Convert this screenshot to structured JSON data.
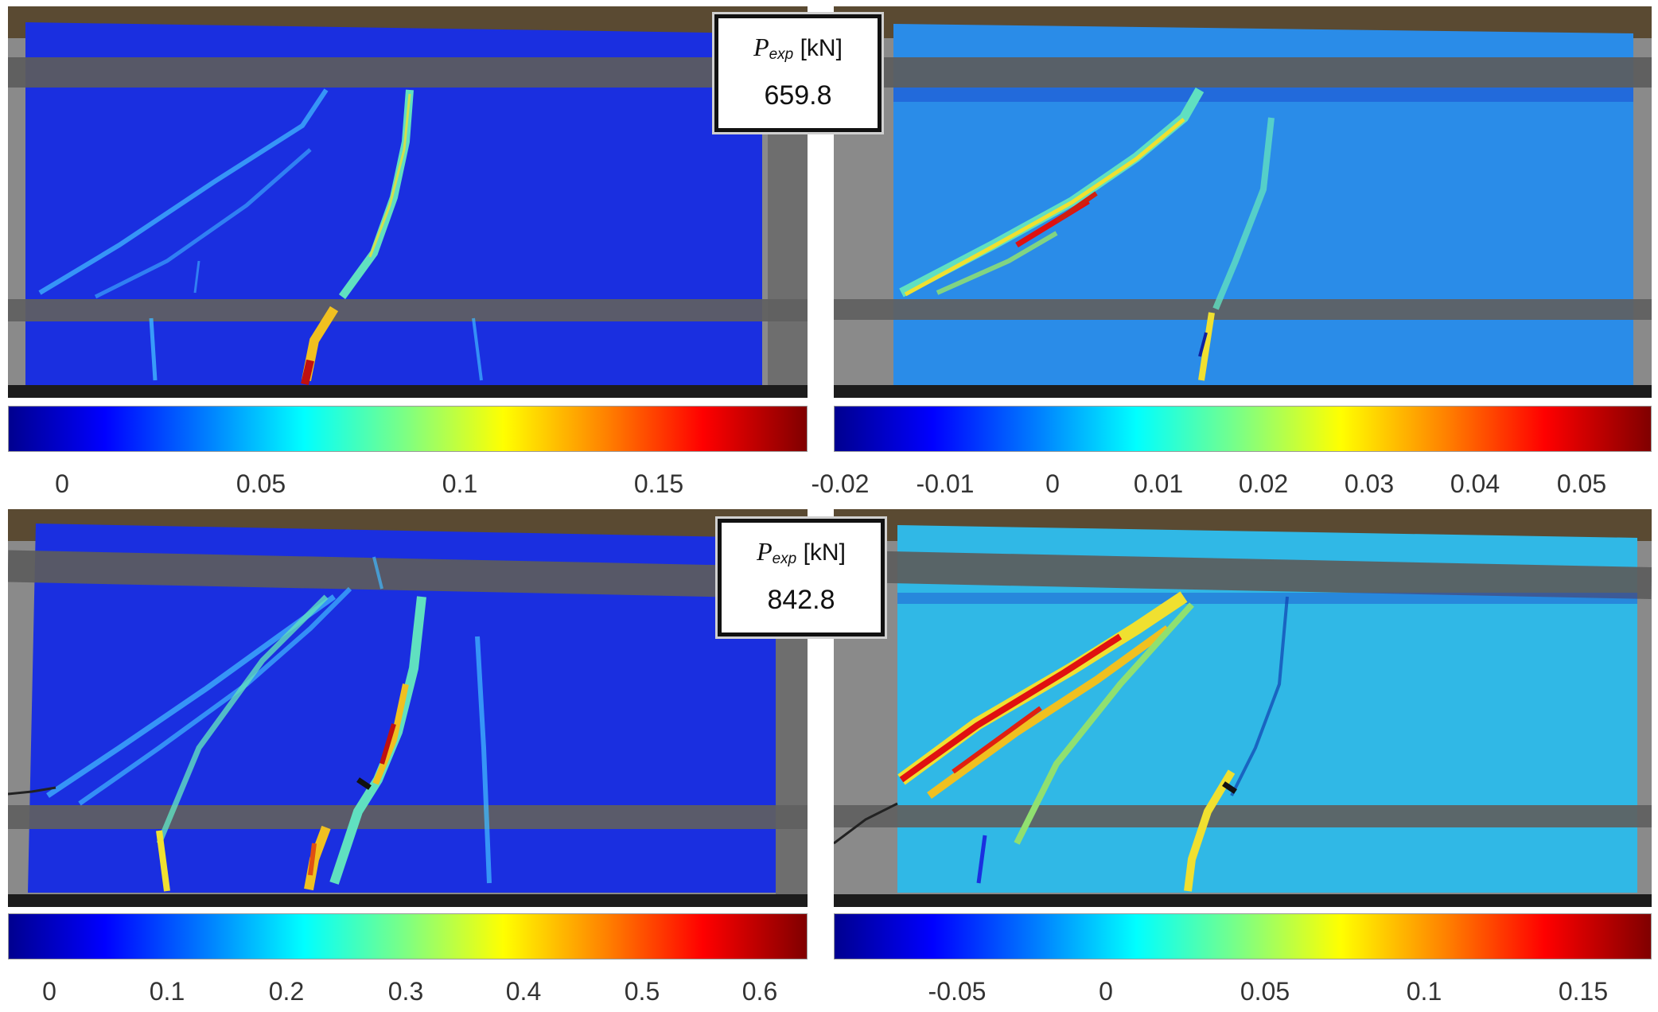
{
  "colors": {
    "field_low_left": "#1a2fe0",
    "field_low_right": "#2a8ce8",
    "field_low_right_bottom": "#30b8e6",
    "frame": "#555555",
    "crack_mid": "#f0e030",
    "crack_high": "#e01010"
  },
  "panels": [
    {
      "name": "top-left-strain-map"
    },
    {
      "name": "top-right-strain-map"
    },
    {
      "name": "bottom-left-strain-map"
    },
    {
      "name": "bottom-right-strain-map"
    }
  ],
  "load_boxes": [
    {
      "symbol": "P",
      "subscript": "exp",
      "unit": "[kN]",
      "value": "659.8"
    },
    {
      "symbol": "P",
      "subscript": "exp",
      "unit": "[kN]",
      "value": "842.8"
    }
  ],
  "colorbars": {
    "top_left": {
      "colormap": "jet",
      "ticks": [
        "0",
        "0.05",
        "0.1",
        "0.15"
      ]
    },
    "top_right": {
      "colormap": "jet",
      "ticks": [
        "-0.02",
        "-0.01",
        "0",
        "0.01",
        "0.02",
        "0.03",
        "0.04",
        "0.05"
      ]
    },
    "bottom_left": {
      "colormap": "jet",
      "ticks": [
        "0",
        "0.1",
        "0.2",
        "0.3",
        "0.4",
        "0.5",
        "0.6"
      ]
    },
    "bottom_right": {
      "colormap": "jet",
      "ticks": [
        "-0.05",
        "0",
        "0.05",
        "0.1",
        "0.15"
      ]
    }
  }
}
